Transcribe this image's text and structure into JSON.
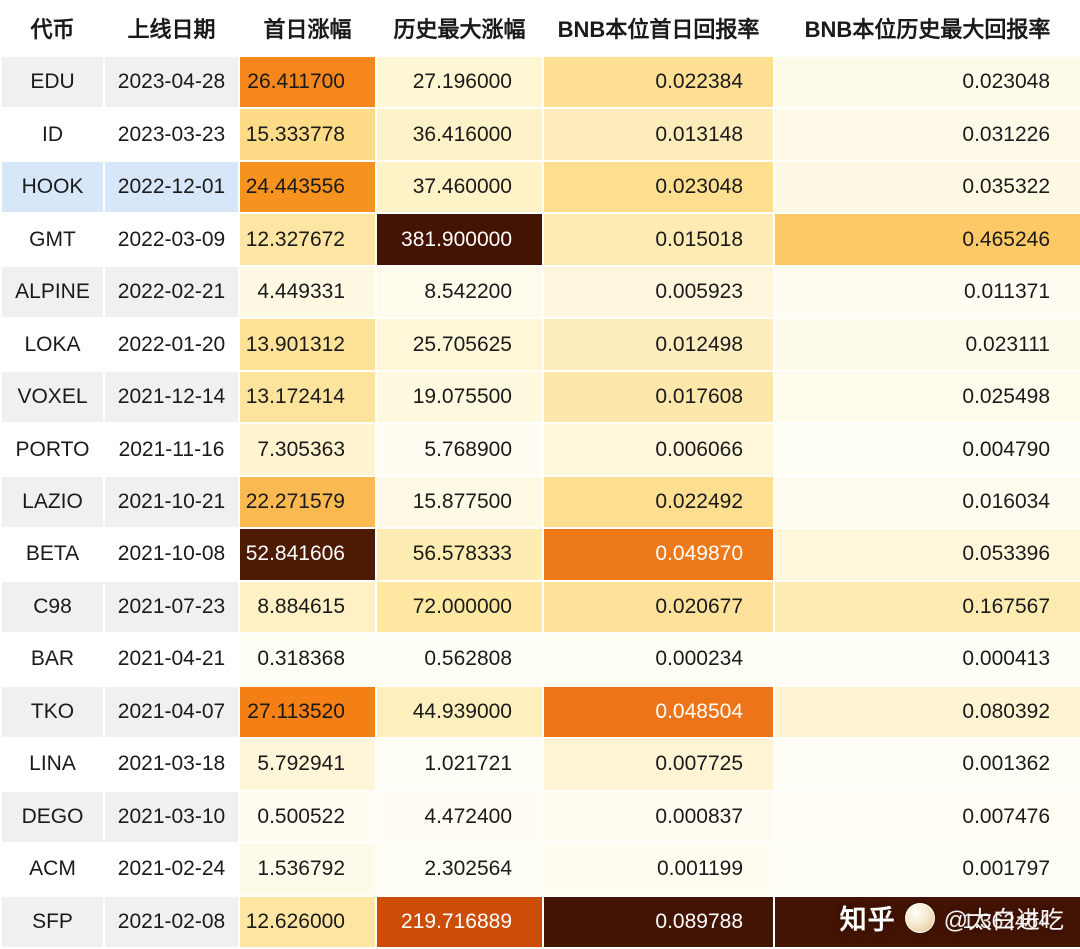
{
  "theme": {
    "text": "#1a1a1a",
    "grid": "#ffffff",
    "header_bg": "#ffffff",
    "stripe_gray": "#f0f0f0",
    "stripe_white": "#ffffff",
    "highlight_blue": "#d7e6f8",
    "heat_dark": "#431303",
    "heat_orange": "#f5861b"
  },
  "watermark": {
    "brand": "知乎",
    "handle": "@太白进吃"
  },
  "chart_data": {
    "type": "table",
    "title": "",
    "columns": [
      "代币",
      "上线日期",
      "首日涨幅",
      "历史最大涨幅",
      "BNB本位首日回报率",
      "BNB本位历史最大回报率"
    ],
    "heatmap": "per-column, light yellow (low) to dark brown (high)",
    "rows": [
      {
        "token": "EDU",
        "date": "2023-04-28",
        "label_bg": "#f0f0f0",
        "cells": [
          {
            "v": "26.411700",
            "bg": "#F5861B"
          },
          {
            "v": "27.196000",
            "bg": "#FFF6D3"
          },
          {
            "v": "0.022384",
            "bg": "#FEDF93"
          },
          {
            "v": "0.023048",
            "bg": "#FFFBEB"
          }
        ]
      },
      {
        "token": "ID",
        "date": "2023-03-23",
        "label_bg": "#ffffff",
        "cells": [
          {
            "v": "15.333778",
            "bg": "#FEDC87"
          },
          {
            "v": "36.416000",
            "bg": "#FEF3C8"
          },
          {
            "v": "0.013148",
            "bg": "#FEECBA"
          },
          {
            "v": "0.031226",
            "bg": "#FFFAE8"
          }
        ]
      },
      {
        "token": "HOOK",
        "date": "2022-12-01",
        "label_bg": "#d7e6f8",
        "cells": [
          {
            "v": "24.443556",
            "bg": "#F6921E"
          },
          {
            "v": "37.460000",
            "bg": "#FEF2C7"
          },
          {
            "v": "0.023048",
            "bg": "#FEDE8F"
          },
          {
            "v": "0.035322",
            "bg": "#FFF9E4"
          }
        ]
      },
      {
        "token": "GMT",
        "date": "2022-03-09",
        "label_bg": "#ffffff",
        "cells": [
          {
            "v": "12.327672",
            "bg": "#FEE5A3"
          },
          {
            "v": "381.900000",
            "bg": "#431303",
            "fg": "#ffffff"
          },
          {
            "v": "0.015018",
            "bg": "#FEEAB3"
          },
          {
            "v": "0.465246",
            "bg": "#FCC966"
          }
        ]
      },
      {
        "token": "ALPINE",
        "date": "2022-02-21",
        "label_bg": "#f0f0f0",
        "cells": [
          {
            "v": "4.449331",
            "bg": "#FFF9E3"
          },
          {
            "v": "8.542200",
            "bg": "#FFFCEE"
          },
          {
            "v": "0.005923",
            "bg": "#FFF6DD"
          },
          {
            "v": "0.011371",
            "bg": "#FFFDF2"
          }
        ]
      },
      {
        "token": "LOKA",
        "date": "2022-01-20",
        "label_bg": "#ffffff",
        "cells": [
          {
            "v": "13.901312",
            "bg": "#FEE298"
          },
          {
            "v": "25.705625",
            "bg": "#FFF7D7"
          },
          {
            "v": "0.012498",
            "bg": "#FEEDBE"
          },
          {
            "v": "0.023111",
            "bg": "#FFFBEC"
          }
        ]
      },
      {
        "token": "VOXEL",
        "date": "2021-12-14",
        "label_bg": "#f0f0f0",
        "cells": [
          {
            "v": "13.172414",
            "bg": "#FEE39D"
          },
          {
            "v": "19.075500",
            "bg": "#FFF9E0"
          },
          {
            "v": "0.017608",
            "bg": "#FEE7AA"
          },
          {
            "v": "0.025498",
            "bg": "#FFFBED"
          }
        ]
      },
      {
        "token": "PORTO",
        "date": "2021-11-16",
        "label_bg": "#ffffff",
        "cells": [
          {
            "v": "7.305363",
            "bg": "#FFF3D0"
          },
          {
            "v": "5.768900",
            "bg": "#FFFDF1"
          },
          {
            "v": "0.006066",
            "bg": "#FFF6DC"
          },
          {
            "v": "0.004790",
            "bg": "#FFFEF5"
          }
        ]
      },
      {
        "token": "LAZIO",
        "date": "2021-10-21",
        "label_bg": "#f0f0f0",
        "cells": [
          {
            "v": "22.271579",
            "bg": "#FBB952"
          },
          {
            "v": "15.877500",
            "bg": "#FFFAE6"
          },
          {
            "v": "0.022492",
            "bg": "#FEDF92"
          },
          {
            "v": "0.016034",
            "bg": "#FFFCEF"
          }
        ]
      },
      {
        "token": "BETA",
        "date": "2021-10-08",
        "label_bg": "#ffffff",
        "cells": [
          {
            "v": "52.841606",
            "bg": "#4D1A04",
            "fg": "#ffffff"
          },
          {
            "v": "56.578333",
            "bg": "#FEEDB2"
          },
          {
            "v": "0.049870",
            "bg": "#EE7918",
            "fg": "#ffffff"
          },
          {
            "v": "0.053396",
            "bg": "#FFF7DC"
          }
        ]
      },
      {
        "token": "C98",
        "date": "2021-07-23",
        "label_bg": "#f0f0f0",
        "cells": [
          {
            "v": "8.884615",
            "bg": "#FFF0C5"
          },
          {
            "v": "72.000000",
            "bg": "#FEE8A2"
          },
          {
            "v": "0.020677",
            "bg": "#FEE29C"
          },
          {
            "v": "0.167567",
            "bg": "#FEEBB1"
          }
        ]
      },
      {
        "token": "BAR",
        "date": "2021-04-21",
        "label_bg": "#ffffff",
        "cells": [
          {
            "v": "0.318368",
            "bg": "#FFFEF4"
          },
          {
            "v": "0.562808",
            "bg": "#FFFEF6"
          },
          {
            "v": "0.000234",
            "bg": "#FFFEF5"
          },
          {
            "v": "0.000413",
            "bg": "#FFFEF7"
          }
        ]
      },
      {
        "token": "TKO",
        "date": "2021-04-07",
        "label_bg": "#f0f0f0",
        "cells": [
          {
            "v": "27.113520",
            "bg": "#F47F14"
          },
          {
            "v": "44.939000",
            "bg": "#FEF0BE"
          },
          {
            "v": "0.048504",
            "bg": "#ED7417",
            "fg": "#ffffff"
          },
          {
            "v": "0.080392",
            "bg": "#FFF4D2"
          }
        ]
      },
      {
        "token": "LINA",
        "date": "2021-03-18",
        "label_bg": "#ffffff",
        "cells": [
          {
            "v": "5.792941",
            "bg": "#FFF6D9"
          },
          {
            "v": "1.021721",
            "bg": "#FFFEF6"
          },
          {
            "v": "0.007725",
            "bg": "#FFF4D4"
          },
          {
            "v": "0.001362",
            "bg": "#FFFEF7"
          }
        ]
      },
      {
        "token": "DEGO",
        "date": "2021-03-10",
        "label_bg": "#f0f0f0",
        "cells": [
          {
            "v": "0.500522",
            "bg": "#FFFDF1"
          },
          {
            "v": "4.472400",
            "bg": "#FFFDF3"
          },
          {
            "v": "0.000837",
            "bg": "#FFFDF2"
          },
          {
            "v": "0.007476",
            "bg": "#FFFDF4"
          }
        ]
      },
      {
        "token": "ACM",
        "date": "2021-02-24",
        "label_bg": "#ffffff",
        "cells": [
          {
            "v": "1.536792",
            "bg": "#FFFBEA"
          },
          {
            "v": "2.302564",
            "bg": "#FFFEF5"
          },
          {
            "v": "0.001199",
            "bg": "#FFFCF0"
          },
          {
            "v": "0.001797",
            "bg": "#FFFEF6"
          }
        ]
      },
      {
        "token": "SFP",
        "date": "2021-02-08",
        "label_bg": "#f0f0f0",
        "cells": [
          {
            "v": "12.626000",
            "bg": "#FEE5A2"
          },
          {
            "v": "219.716889",
            "bg": "#CB4D08",
            "fg": "#ffffff"
          },
          {
            "v": "0.089788",
            "bg": "#431303",
            "fg": "#ffffff"
          },
          {
            "v": "1.362464",
            "bg": "#431303",
            "fg": "#ffffff"
          }
        ]
      }
    ]
  }
}
